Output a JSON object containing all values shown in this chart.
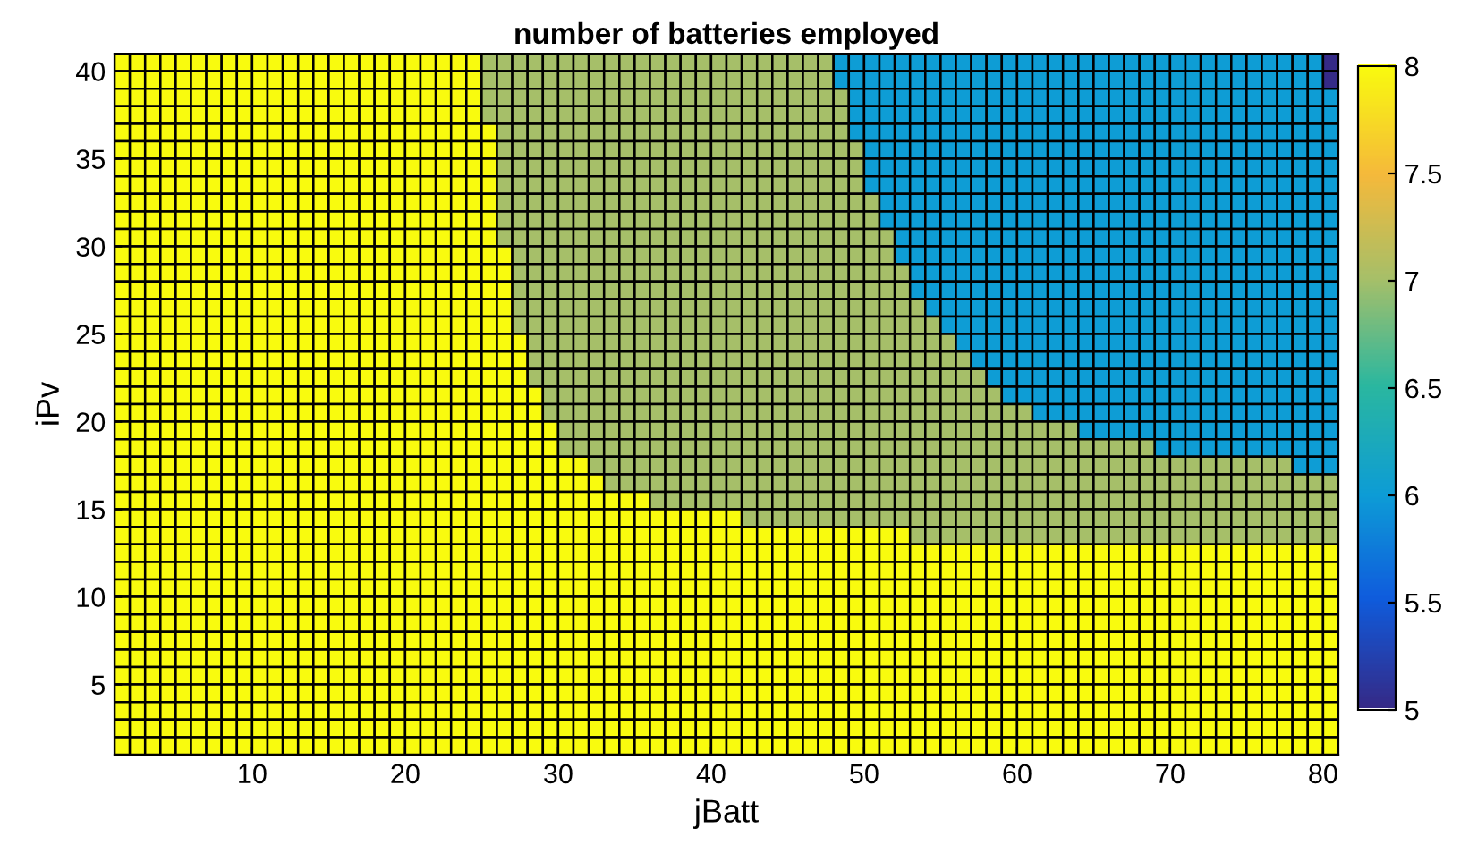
{
  "chart_data": {
    "type": "heatmap",
    "title": "number of batteries employed",
    "xlabel": "jBatt",
    "ylabel": "iPv",
    "xlim": [
      1,
      81
    ],
    "ylim": [
      1,
      41
    ],
    "xticks": [
      10,
      20,
      30,
      40,
      50,
      60,
      70,
      80
    ],
    "yticks": [
      5,
      10,
      15,
      20,
      25,
      30,
      35,
      40
    ],
    "clim": [
      5,
      8
    ],
    "cticks": [
      5,
      5.5,
      6,
      6.5,
      7,
      7.5,
      8
    ],
    "grid": false,
    "cells": [
      [
        8,
        8,
        8,
        8,
        8,
        8,
        8,
        8,
        8,
        8,
        8,
        8,
        8,
        8,
        8,
        8,
        8,
        8,
        8,
        8,
        8,
        8,
        8,
        8,
        7,
        7,
        7,
        7,
        7,
        7,
        7,
        7,
        7,
        7,
        7,
        7,
        7,
        7,
        7,
        7,
        7,
        7,
        7,
        7,
        7,
        7,
        7,
        6,
        6,
        6,
        6,
        6,
        6,
        6,
        6,
        6,
        6,
        6,
        6,
        6,
        6,
        6,
        6,
        6,
        6,
        6,
        6,
        6,
        6,
        6,
        6,
        6,
        6,
        6,
        6,
        6,
        6,
        6,
        6,
        5
      ],
      [
        8,
        8,
        8,
        8,
        8,
        8,
        8,
        8,
        8,
        8,
        8,
        8,
        8,
        8,
        8,
        8,
        8,
        8,
        8,
        8,
        8,
        8,
        8,
        8,
        7,
        7,
        7,
        7,
        7,
        7,
        7,
        7,
        7,
        7,
        7,
        7,
        7,
        7,
        7,
        7,
        7,
        7,
        7,
        7,
        7,
        7,
        7,
        6,
        6,
        6,
        6,
        6,
        6,
        6,
        6,
        6,
        6,
        6,
        6,
        6,
        6,
        6,
        6,
        6,
        6,
        6,
        6,
        6,
        6,
        6,
        6,
        6,
        6,
        6,
        6,
        6,
        6,
        6,
        6,
        5
      ],
      [
        8,
        8,
        8,
        8,
        8,
        8,
        8,
        8,
        8,
        8,
        8,
        8,
        8,
        8,
        8,
        8,
        8,
        8,
        8,
        8,
        8,
        8,
        8,
        8,
        7,
        7,
        7,
        7,
        7,
        7,
        7,
        7,
        7,
        7,
        7,
        7,
        7,
        7,
        7,
        7,
        7,
        7,
        7,
        7,
        7,
        7,
        7,
        7,
        6,
        6,
        6,
        6,
        6,
        6,
        6,
        6,
        6,
        6,
        6,
        6,
        6,
        6,
        6,
        6,
        6,
        6,
        6,
        6,
        6,
        6,
        6,
        6,
        6,
        6,
        6,
        6,
        6,
        6,
        6,
        6
      ],
      [
        8,
        8,
        8,
        8,
        8,
        8,
        8,
        8,
        8,
        8,
        8,
        8,
        8,
        8,
        8,
        8,
        8,
        8,
        8,
        8,
        8,
        8,
        8,
        8,
        7,
        7,
        7,
        7,
        7,
        7,
        7,
        7,
        7,
        7,
        7,
        7,
        7,
        7,
        7,
        7,
        7,
        7,
        7,
        7,
        7,
        7,
        7,
        7,
        6,
        6,
        6,
        6,
        6,
        6,
        6,
        6,
        6,
        6,
        6,
        6,
        6,
        6,
        6,
        6,
        6,
        6,
        6,
        6,
        6,
        6,
        6,
        6,
        6,
        6,
        6,
        6,
        6,
        6,
        6,
        6
      ],
      [
        8,
        8,
        8,
        8,
        8,
        8,
        8,
        8,
        8,
        8,
        8,
        8,
        8,
        8,
        8,
        8,
        8,
        8,
        8,
        8,
        8,
        8,
        8,
        8,
        8,
        7,
        7,
        7,
        7,
        7,
        7,
        7,
        7,
        7,
        7,
        7,
        7,
        7,
        7,
        7,
        7,
        7,
        7,
        7,
        7,
        7,
        7,
        7,
        6,
        6,
        6,
        6,
        6,
        6,
        6,
        6,
        6,
        6,
        6,
        6,
        6,
        6,
        6,
        6,
        6,
        6,
        6,
        6,
        6,
        6,
        6,
        6,
        6,
        6,
        6,
        6,
        6,
        6,
        6,
        6
      ],
      [
        8,
        8,
        8,
        8,
        8,
        8,
        8,
        8,
        8,
        8,
        8,
        8,
        8,
        8,
        8,
        8,
        8,
        8,
        8,
        8,
        8,
        8,
        8,
        8,
        8,
        7,
        7,
        7,
        7,
        7,
        7,
        7,
        7,
        7,
        7,
        7,
        7,
        7,
        7,
        7,
        7,
        7,
        7,
        7,
        7,
        7,
        7,
        7,
        7,
        6,
        6,
        6,
        6,
        6,
        6,
        6,
        6,
        6,
        6,
        6,
        6,
        6,
        6,
        6,
        6,
        6,
        6,
        6,
        6,
        6,
        6,
        6,
        6,
        6,
        6,
        6,
        6,
        6,
        6,
        6
      ],
      [
        8,
        8,
        8,
        8,
        8,
        8,
        8,
        8,
        8,
        8,
        8,
        8,
        8,
        8,
        8,
        8,
        8,
        8,
        8,
        8,
        8,
        8,
        8,
        8,
        8,
        7,
        7,
        7,
        7,
        7,
        7,
        7,
        7,
        7,
        7,
        7,
        7,
        7,
        7,
        7,
        7,
        7,
        7,
        7,
        7,
        7,
        7,
        7,
        7,
        6,
        6,
        6,
        6,
        6,
        6,
        6,
        6,
        6,
        6,
        6,
        6,
        6,
        6,
        6,
        6,
        6,
        6,
        6,
        6,
        6,
        6,
        6,
        6,
        6,
        6,
        6,
        6,
        6,
        6,
        6
      ],
      [
        8,
        8,
        8,
        8,
        8,
        8,
        8,
        8,
        8,
        8,
        8,
        8,
        8,
        8,
        8,
        8,
        8,
        8,
        8,
        8,
        8,
        8,
        8,
        8,
        8,
        7,
        7,
        7,
        7,
        7,
        7,
        7,
        7,
        7,
        7,
        7,
        7,
        7,
        7,
        7,
        7,
        7,
        7,
        7,
        7,
        7,
        7,
        7,
        7,
        6,
        6,
        6,
        6,
        6,
        6,
        6,
        6,
        6,
        6,
        6,
        6,
        6,
        6,
        6,
        6,
        6,
        6,
        6,
        6,
        6,
        6,
        6,
        6,
        6,
        6,
        6,
        6,
        6,
        6,
        6
      ],
      [
        8,
        8,
        8,
        8,
        8,
        8,
        8,
        8,
        8,
        8,
        8,
        8,
        8,
        8,
        8,
        8,
        8,
        8,
        8,
        8,
        8,
        8,
        8,
        8,
        8,
        7,
        7,
        7,
        7,
        7,
        7,
        7,
        7,
        7,
        7,
        7,
        7,
        7,
        7,
        7,
        7,
        7,
        7,
        7,
        7,
        7,
        7,
        7,
        7,
        7,
        6,
        6,
        6,
        6,
        6,
        6,
        6,
        6,
        6,
        6,
        6,
        6,
        6,
        6,
        6,
        6,
        6,
        6,
        6,
        6,
        6,
        6,
        6,
        6,
        6,
        6,
        6,
        6,
        6,
        6
      ],
      [
        8,
        8,
        8,
        8,
        8,
        8,
        8,
        8,
        8,
        8,
        8,
        8,
        8,
        8,
        8,
        8,
        8,
        8,
        8,
        8,
        8,
        8,
        8,
        8,
        8,
        7,
        7,
        7,
        7,
        7,
        7,
        7,
        7,
        7,
        7,
        7,
        7,
        7,
        7,
        7,
        7,
        7,
        7,
        7,
        7,
        7,
        7,
        7,
        7,
        7,
        6,
        6,
        6,
        6,
        6,
        6,
        6,
        6,
        6,
        6,
        6,
        6,
        6,
        6,
        6,
        6,
        6,
        6,
        6,
        6,
        6,
        6,
        6,
        6,
        6,
        6,
        6,
        6,
        6,
        6
      ],
      [
        8,
        8,
        8,
        8,
        8,
        8,
        8,
        8,
        8,
        8,
        8,
        8,
        8,
        8,
        8,
        8,
        8,
        8,
        8,
        8,
        8,
        8,
        8,
        8,
        8,
        7,
        7,
        7,
        7,
        7,
        7,
        7,
        7,
        7,
        7,
        7,
        7,
        7,
        7,
        7,
        7,
        7,
        7,
        7,
        7,
        7,
        7,
        7,
        7,
        7,
        7,
        6,
        6,
        6,
        6,
        6,
        6,
        6,
        6,
        6,
        6,
        6,
        6,
        6,
        6,
        6,
        6,
        6,
        6,
        6,
        6,
        6,
        6,
        6,
        6,
        6,
        6,
        6,
        6,
        6
      ],
      [
        8,
        8,
        8,
        8,
        8,
        8,
        8,
        8,
        8,
        8,
        8,
        8,
        8,
        8,
        8,
        8,
        8,
        8,
        8,
        8,
        8,
        8,
        8,
        8,
        8,
        8,
        7,
        7,
        7,
        7,
        7,
        7,
        7,
        7,
        7,
        7,
        7,
        7,
        7,
        7,
        7,
        7,
        7,
        7,
        7,
        7,
        7,
        7,
        7,
        7,
        7,
        6,
        6,
        6,
        6,
        6,
        6,
        6,
        6,
        6,
        6,
        6,
        6,
        6,
        6,
        6,
        6,
        6,
        6,
        6,
        6,
        6,
        6,
        6,
        6,
        6,
        6,
        6,
        6,
        6
      ],
      [
        8,
        8,
        8,
        8,
        8,
        8,
        8,
        8,
        8,
        8,
        8,
        8,
        8,
        8,
        8,
        8,
        8,
        8,
        8,
        8,
        8,
        8,
        8,
        8,
        8,
        8,
        7,
        7,
        7,
        7,
        7,
        7,
        7,
        7,
        7,
        7,
        7,
        7,
        7,
        7,
        7,
        7,
        7,
        7,
        7,
        7,
        7,
        7,
        7,
        7,
        7,
        7,
        6,
        6,
        6,
        6,
        6,
        6,
        6,
        6,
        6,
        6,
        6,
        6,
        6,
        6,
        6,
        6,
        6,
        6,
        6,
        6,
        6,
        6,
        6,
        6,
        6,
        6,
        6,
        6
      ],
      [
        8,
        8,
        8,
        8,
        8,
        8,
        8,
        8,
        8,
        8,
        8,
        8,
        8,
        8,
        8,
        8,
        8,
        8,
        8,
        8,
        8,
        8,
        8,
        8,
        8,
        8,
        7,
        7,
        7,
        7,
        7,
        7,
        7,
        7,
        7,
        7,
        7,
        7,
        7,
        7,
        7,
        7,
        7,
        7,
        7,
        7,
        7,
        7,
        7,
        7,
        7,
        7,
        6,
        6,
        6,
        6,
        6,
        6,
        6,
        6,
        6,
        6,
        6,
        6,
        6,
        6,
        6,
        6,
        6,
        6,
        6,
        6,
        6,
        6,
        6,
        6,
        6,
        6,
        6,
        6
      ],
      [
        8,
        8,
        8,
        8,
        8,
        8,
        8,
        8,
        8,
        8,
        8,
        8,
        8,
        8,
        8,
        8,
        8,
        8,
        8,
        8,
        8,
        8,
        8,
        8,
        8,
        8,
        7,
        7,
        7,
        7,
        7,
        7,
        7,
        7,
        7,
        7,
        7,
        7,
        7,
        7,
        7,
        7,
        7,
        7,
        7,
        7,
        7,
        7,
        7,
        7,
        7,
        7,
        7,
        6,
        6,
        6,
        6,
        6,
        6,
        6,
        6,
        6,
        6,
        6,
        6,
        6,
        6,
        6,
        6,
        6,
        6,
        6,
        6,
        6,
        6,
        6,
        6,
        6,
        6,
        6
      ],
      [
        8,
        8,
        8,
        8,
        8,
        8,
        8,
        8,
        8,
        8,
        8,
        8,
        8,
        8,
        8,
        8,
        8,
        8,
        8,
        8,
        8,
        8,
        8,
        8,
        8,
        8,
        7,
        7,
        7,
        7,
        7,
        7,
        7,
        7,
        7,
        7,
        7,
        7,
        7,
        7,
        7,
        7,
        7,
        7,
        7,
        7,
        7,
        7,
        7,
        7,
        7,
        7,
        7,
        7,
        6,
        6,
        6,
        6,
        6,
        6,
        6,
        6,
        6,
        6,
        6,
        6,
        6,
        6,
        6,
        6,
        6,
        6,
        6,
        6,
        6,
        6,
        6,
        6,
        6,
        6
      ],
      [
        8,
        8,
        8,
        8,
        8,
        8,
        8,
        8,
        8,
        8,
        8,
        8,
        8,
        8,
        8,
        8,
        8,
        8,
        8,
        8,
        8,
        8,
        8,
        8,
        8,
        8,
        8,
        7,
        7,
        7,
        7,
        7,
        7,
        7,
        7,
        7,
        7,
        7,
        7,
        7,
        7,
        7,
        7,
        7,
        7,
        7,
        7,
        7,
        7,
        7,
        7,
        7,
        7,
        7,
        7,
        6,
        6,
        6,
        6,
        6,
        6,
        6,
        6,
        6,
        6,
        6,
        6,
        6,
        6,
        6,
        6,
        6,
        6,
        6,
        6,
        6,
        6,
        6,
        6,
        6
      ],
      [
        8,
        8,
        8,
        8,
        8,
        8,
        8,
        8,
        8,
        8,
        8,
        8,
        8,
        8,
        8,
        8,
        8,
        8,
        8,
        8,
        8,
        8,
        8,
        8,
        8,
        8,
        8,
        7,
        7,
        7,
        7,
        7,
        7,
        7,
        7,
        7,
        7,
        7,
        7,
        7,
        7,
        7,
        7,
        7,
        7,
        7,
        7,
        7,
        7,
        7,
        7,
        7,
        7,
        7,
        7,
        7,
        6,
        6,
        6,
        6,
        6,
        6,
        6,
        6,
        6,
        6,
        6,
        6,
        6,
        6,
        6,
        6,
        6,
        6,
        6,
        6,
        6,
        6,
        6,
        6
      ],
      [
        8,
        8,
        8,
        8,
        8,
        8,
        8,
        8,
        8,
        8,
        8,
        8,
        8,
        8,
        8,
        8,
        8,
        8,
        8,
        8,
        8,
        8,
        8,
        8,
        8,
        8,
        8,
        7,
        7,
        7,
        7,
        7,
        7,
        7,
        7,
        7,
        7,
        7,
        7,
        7,
        7,
        7,
        7,
        7,
        7,
        7,
        7,
        7,
        7,
        7,
        7,
        7,
        7,
        7,
        7,
        7,
        7,
        6,
        6,
        6,
        6,
        6,
        6,
        6,
        6,
        6,
        6,
        6,
        6,
        6,
        6,
        6,
        6,
        6,
        6,
        6,
        6,
        6,
        6,
        6
      ],
      [
        8,
        8,
        8,
        8,
        8,
        8,
        8,
        8,
        8,
        8,
        8,
        8,
        8,
        8,
        8,
        8,
        8,
        8,
        8,
        8,
        8,
        8,
        8,
        8,
        8,
        8,
        8,
        8,
        7,
        7,
        7,
        7,
        7,
        7,
        7,
        7,
        7,
        7,
        7,
        7,
        7,
        7,
        7,
        7,
        7,
        7,
        7,
        7,
        7,
        7,
        7,
        7,
        7,
        7,
        7,
        7,
        7,
        7,
        6,
        6,
        6,
        6,
        6,
        6,
        6,
        6,
        6,
        6,
        6,
        6,
        6,
        6,
        6,
        6,
        6,
        6,
        6,
        6,
        6,
        6
      ],
      [
        8,
        8,
        8,
        8,
        8,
        8,
        8,
        8,
        8,
        8,
        8,
        8,
        8,
        8,
        8,
        8,
        8,
        8,
        8,
        8,
        8,
        8,
        8,
        8,
        8,
        8,
        8,
        8,
        7,
        7,
        7,
        7,
        7,
        7,
        7,
        7,
        7,
        7,
        7,
        7,
        7,
        7,
        7,
        7,
        7,
        7,
        7,
        7,
        7,
        7,
        7,
        7,
        7,
        7,
        7,
        7,
        7,
        7,
        7,
        7,
        6,
        6,
        6,
        6,
        6,
        6,
        6,
        6,
        6,
        6,
        6,
        6,
        6,
        6,
        6,
        6,
        6,
        6,
        6,
        6
      ],
      [
        8,
        8,
        8,
        8,
        8,
        8,
        8,
        8,
        8,
        8,
        8,
        8,
        8,
        8,
        8,
        8,
        8,
        8,
        8,
        8,
        8,
        8,
        8,
        8,
        8,
        8,
        8,
        8,
        8,
        7,
        7,
        7,
        7,
        7,
        7,
        7,
        7,
        7,
        7,
        7,
        7,
        7,
        7,
        7,
        7,
        7,
        7,
        7,
        7,
        7,
        7,
        7,
        7,
        7,
        7,
        7,
        7,
        7,
        7,
        7,
        7,
        7,
        7,
        6,
        6,
        6,
        6,
        6,
        6,
        6,
        6,
        6,
        6,
        6,
        6,
        6,
        6,
        6,
        6,
        6
      ],
      [
        8,
        8,
        8,
        8,
        8,
        8,
        8,
        8,
        8,
        8,
        8,
        8,
        8,
        8,
        8,
        8,
        8,
        8,
        8,
        8,
        8,
        8,
        8,
        8,
        8,
        8,
        8,
        8,
        8,
        7,
        7,
        7,
        7,
        7,
        7,
        7,
        7,
        7,
        7,
        7,
        7,
        7,
        7,
        7,
        7,
        7,
        7,
        7,
        7,
        7,
        7,
        7,
        7,
        7,
        7,
        7,
        7,
        7,
        7,
        7,
        7,
        7,
        7,
        7,
        7,
        7,
        7,
        7,
        6,
        6,
        6,
        6,
        6,
        6,
        6,
        6,
        6,
        6,
        6,
        6
      ],
      [
        8,
        8,
        8,
        8,
        8,
        8,
        8,
        8,
        8,
        8,
        8,
        8,
        8,
        8,
        8,
        8,
        8,
        8,
        8,
        8,
        8,
        8,
        8,
        8,
        8,
        8,
        8,
        8,
        8,
        8,
        8,
        7,
        7,
        7,
        7,
        7,
        7,
        7,
        7,
        7,
        7,
        7,
        7,
        7,
        7,
        7,
        7,
        7,
        7,
        7,
        7,
        7,
        7,
        7,
        7,
        7,
        7,
        7,
        7,
        7,
        7,
        7,
        7,
        7,
        7,
        7,
        7,
        7,
        7,
        7,
        7,
        7,
        7,
        7,
        7,
        7,
        7,
        6,
        6,
        6
      ],
      [
        8,
        8,
        8,
        8,
        8,
        8,
        8,
        8,
        8,
        8,
        8,
        8,
        8,
        8,
        8,
        8,
        8,
        8,
        8,
        8,
        8,
        8,
        8,
        8,
        8,
        8,
        8,
        8,
        8,
        8,
        8,
        8,
        7,
        7,
        7,
        7,
        7,
        7,
        7,
        7,
        7,
        7,
        7,
        7,
        7,
        7,
        7,
        7,
        7,
        7,
        7,
        7,
        7,
        7,
        7,
        7,
        7,
        7,
        7,
        7,
        7,
        7,
        7,
        7,
        7,
        7,
        7,
        7,
        7,
        7,
        7,
        7,
        7,
        7,
        7,
        7,
        7,
        7,
        7,
        7
      ],
      [
        8,
        8,
        8,
        8,
        8,
        8,
        8,
        8,
        8,
        8,
        8,
        8,
        8,
        8,
        8,
        8,
        8,
        8,
        8,
        8,
        8,
        8,
        8,
        8,
        8,
        8,
        8,
        8,
        8,
        8,
        8,
        8,
        8,
        8,
        8,
        7,
        7,
        7,
        7,
        7,
        7,
        7,
        7,
        7,
        7,
        7,
        7,
        7,
        7,
        7,
        7,
        7,
        7,
        7,
        7,
        7,
        7,
        7,
        7,
        7,
        7,
        7,
        7,
        7,
        7,
        7,
        7,
        7,
        7,
        7,
        7,
        7,
        7,
        7,
        7,
        7,
        7,
        7,
        7,
        7
      ],
      [
        8,
        8,
        8,
        8,
        8,
        8,
        8,
        8,
        8,
        8,
        8,
        8,
        8,
        8,
        8,
        8,
        8,
        8,
        8,
        8,
        8,
        8,
        8,
        8,
        8,
        8,
        8,
        8,
        8,
        8,
        8,
        8,
        8,
        8,
        8,
        8,
        8,
        8,
        8,
        8,
        8,
        7,
        7,
        7,
        7,
        7,
        7,
        7,
        7,
        7,
        7,
        7,
        7,
        7,
        7,
        7,
        7,
        7,
        7,
        7,
        7,
        7,
        7,
        7,
        7,
        7,
        7,
        7,
        7,
        7,
        7,
        7,
        7,
        7,
        7,
        7,
        7,
        7,
        7,
        7
      ],
      [
        8,
        8,
        8,
        8,
        8,
        8,
        8,
        8,
        8,
        8,
        8,
        8,
        8,
        8,
        8,
        8,
        8,
        8,
        8,
        8,
        8,
        8,
        8,
        8,
        8,
        8,
        8,
        8,
        8,
        8,
        8,
        8,
        8,
        8,
        8,
        8,
        8,
        8,
        8,
        8,
        8,
        8,
        8,
        8,
        8,
        8,
        8,
        8,
        8,
        8,
        8,
        8,
        7,
        7,
        7,
        7,
        7,
        7,
        7,
        7,
        7,
        7,
        7,
        7,
        7,
        7,
        7,
        7,
        7,
        7,
        7,
        7,
        7,
        7,
        7,
        7,
        7,
        7,
        7,
        7
      ],
      [
        8,
        8,
        8,
        8,
        8,
        8,
        8,
        8,
        8,
        8,
        8,
        8,
        8,
        8,
        8,
        8,
        8,
        8,
        8,
        8,
        8,
        8,
        8,
        8,
        8,
        8,
        8,
        8,
        8,
        8,
        8,
        8,
        8,
        8,
        8,
        8,
        8,
        8,
        8,
        8,
        8,
        8,
        8,
        8,
        8,
        8,
        8,
        8,
        8,
        8,
        8,
        8,
        8,
        8,
        8,
        8,
        8,
        8,
        8,
        8,
        8,
        8,
        8,
        8,
        8,
        8,
        8,
        8,
        8,
        8,
        8,
        8,
        8,
        8,
        8,
        8,
        8,
        8,
        8,
        8
      ],
      [
        8,
        8,
        8,
        8,
        8,
        8,
        8,
        8,
        8,
        8,
        8,
        8,
        8,
        8,
        8,
        8,
        8,
        8,
        8,
        8,
        8,
        8,
        8,
        8,
        8,
        8,
        8,
        8,
        8,
        8,
        8,
        8,
        8,
        8,
        8,
        8,
        8,
        8,
        8,
        8,
        8,
        8,
        8,
        8,
        8,
        8,
        8,
        8,
        8,
        8,
        8,
        8,
        8,
        8,
        8,
        8,
        8,
        8,
        8,
        8,
        8,
        8,
        8,
        8,
        8,
        8,
        8,
        8,
        8,
        8,
        8,
        8,
        8,
        8,
        8,
        8,
        8,
        8,
        8,
        8
      ],
      [
        8,
        8,
        8,
        8,
        8,
        8,
        8,
        8,
        8,
        8,
        8,
        8,
        8,
        8,
        8,
        8,
        8,
        8,
        8,
        8,
        8,
        8,
        8,
        8,
        8,
        8,
        8,
        8,
        8,
        8,
        8,
        8,
        8,
        8,
        8,
        8,
        8,
        8,
        8,
        8,
        8,
        8,
        8,
        8,
        8,
        8,
        8,
        8,
        8,
        8,
        8,
        8,
        8,
        8,
        8,
        8,
        8,
        8,
        8,
        8,
        8,
        8,
        8,
        8,
        8,
        8,
        8,
        8,
        8,
        8,
        8,
        8,
        8,
        8,
        8,
        8,
        8,
        8,
        8,
        8
      ],
      [
        8,
        8,
        8,
        8,
        8,
        8,
        8,
        8,
        8,
        8,
        8,
        8,
        8,
        8,
        8,
        8,
        8,
        8,
        8,
        8,
        8,
        8,
        8,
        8,
        8,
        8,
        8,
        8,
        8,
        8,
        8,
        8,
        8,
        8,
        8,
        8,
        8,
        8,
        8,
        8,
        8,
        8,
        8,
        8,
        8,
        8,
        8,
        8,
        8,
        8,
        8,
        8,
        8,
        8,
        8,
        8,
        8,
        8,
        8,
        8,
        8,
        8,
        8,
        8,
        8,
        8,
        8,
        8,
        8,
        8,
        8,
        8,
        8,
        8,
        8,
        8,
        8,
        8,
        8,
        8
      ],
      [
        8,
        8,
        8,
        8,
        8,
        8,
        8,
        8,
        8,
        8,
        8,
        8,
        8,
        8,
        8,
        8,
        8,
        8,
        8,
        8,
        8,
        8,
        8,
        8,
        8,
        8,
        8,
        8,
        8,
        8,
        8,
        8,
        8,
        8,
        8,
        8,
        8,
        8,
        8,
        8,
        8,
        8,
        8,
        8,
        8,
        8,
        8,
        8,
        8,
        8,
        8,
        8,
        8,
        8,
        8,
        8,
        8,
        8,
        8,
        8,
        8,
        8,
        8,
        8,
        8,
        8,
        8,
        8,
        8,
        8,
        8,
        8,
        8,
        8,
        8,
        8,
        8,
        8,
        8,
        8
      ],
      [
        8,
        8,
        8,
        8,
        8,
        8,
        8,
        8,
        8,
        8,
        8,
        8,
        8,
        8,
        8,
        8,
        8,
        8,
        8,
        8,
        8,
        8,
        8,
        8,
        8,
        8,
        8,
        8,
        8,
        8,
        8,
        8,
        8,
        8,
        8,
        8,
        8,
        8,
        8,
        8,
        8,
        8,
        8,
        8,
        8,
        8,
        8,
        8,
        8,
        8,
        8,
        8,
        8,
        8,
        8,
        8,
        8,
        8,
        8,
        8,
        8,
        8,
        8,
        8,
        8,
        8,
        8,
        8,
        8,
        8,
        8,
        8,
        8,
        8,
        8,
        8,
        8,
        8,
        8,
        8
      ],
      [
        8,
        8,
        8,
        8,
        8,
        8,
        8,
        8,
        8,
        8,
        8,
        8,
        8,
        8,
        8,
        8,
        8,
        8,
        8,
        8,
        8,
        8,
        8,
        8,
        8,
        8,
        8,
        8,
        8,
        8,
        8,
        8,
        8,
        8,
        8,
        8,
        8,
        8,
        8,
        8,
        8,
        8,
        8,
        8,
        8,
        8,
        8,
        8,
        8,
        8,
        8,
        8,
        8,
        8,
        8,
        8,
        8,
        8,
        8,
        8,
        8,
        8,
        8,
        8,
        8,
        8,
        8,
        8,
        8,
        8,
        8,
        8,
        8,
        8,
        8,
        8,
        8,
        8,
        8,
        8
      ],
      [
        8,
        8,
        8,
        8,
        8,
        8,
        8,
        8,
        8,
        8,
        8,
        8,
        8,
        8,
        8,
        8,
        8,
        8,
        8,
        8,
        8,
        8,
        8,
        8,
        8,
        8,
        8,
        8,
        8,
        8,
        8,
        8,
        8,
        8,
        8,
        8,
        8,
        8,
        8,
        8,
        8,
        8,
        8,
        8,
        8,
        8,
        8,
        8,
        8,
        8,
        8,
        8,
        8,
        8,
        8,
        8,
        8,
        8,
        8,
        8,
        8,
        8,
        8,
        8,
        8,
        8,
        8,
        8,
        8,
        8,
        8,
        8,
        8,
        8,
        8,
        8,
        8,
        8,
        8,
        8
      ],
      [
        8,
        8,
        8,
        8,
        8,
        8,
        8,
        8,
        8,
        8,
        8,
        8,
        8,
        8,
        8,
        8,
        8,
        8,
        8,
        8,
        8,
        8,
        8,
        8,
        8,
        8,
        8,
        8,
        8,
        8,
        8,
        8,
        8,
        8,
        8,
        8,
        8,
        8,
        8,
        8,
        8,
        8,
        8,
        8,
        8,
        8,
        8,
        8,
        8,
        8,
        8,
        8,
        8,
        8,
        8,
        8,
        8,
        8,
        8,
        8,
        8,
        8,
        8,
        8,
        8,
        8,
        8,
        8,
        8,
        8,
        8,
        8,
        8,
        8,
        8,
        8,
        8,
        8,
        8,
        8
      ],
      [
        8,
        8,
        8,
        8,
        8,
        8,
        8,
        8,
        8,
        8,
        8,
        8,
        8,
        8,
        8,
        8,
        8,
        8,
        8,
        8,
        8,
        8,
        8,
        8,
        8,
        8,
        8,
        8,
        8,
        8,
        8,
        8,
        8,
        8,
        8,
        8,
        8,
        8,
        8,
        8,
        8,
        8,
        8,
        8,
        8,
        8,
        8,
        8,
        8,
        8,
        8,
        8,
        8,
        8,
        8,
        8,
        8,
        8,
        8,
        8,
        8,
        8,
        8,
        8,
        8,
        8,
        8,
        8,
        8,
        8,
        8,
        8,
        8,
        8,
        8,
        8,
        8,
        8,
        8,
        8
      ],
      [
        8,
        8,
        8,
        8,
        8,
        8,
        8,
        8,
        8,
        8,
        8,
        8,
        8,
        8,
        8,
        8,
        8,
        8,
        8,
        8,
        8,
        8,
        8,
        8,
        8,
        8,
        8,
        8,
        8,
        8,
        8,
        8,
        8,
        8,
        8,
        8,
        8,
        8,
        8,
        8,
        8,
        8,
        8,
        8,
        8,
        8,
        8,
        8,
        8,
        8,
        8,
        8,
        8,
        8,
        8,
        8,
        8,
        8,
        8,
        8,
        8,
        8,
        8,
        8,
        8,
        8,
        8,
        8,
        8,
        8,
        8,
        8,
        8,
        8,
        8,
        8,
        8,
        8,
        8,
        8
      ],
      [
        8,
        8,
        8,
        8,
        8,
        8,
        8,
        8,
        8,
        8,
        8,
        8,
        8,
        8,
        8,
        8,
        8,
        8,
        8,
        8,
        8,
        8,
        8,
        8,
        8,
        8,
        8,
        8,
        8,
        8,
        8,
        8,
        8,
        8,
        8,
        8,
        8,
        8,
        8,
        8,
        8,
        8,
        8,
        8,
        8,
        8,
        8,
        8,
        8,
        8,
        8,
        8,
        8,
        8,
        8,
        8,
        8,
        8,
        8,
        8,
        8,
        8,
        8,
        8,
        8,
        8,
        8,
        8,
        8,
        8,
        8,
        8,
        8,
        8,
        8,
        8,
        8,
        8,
        8,
        8
      ]
    ]
  }
}
